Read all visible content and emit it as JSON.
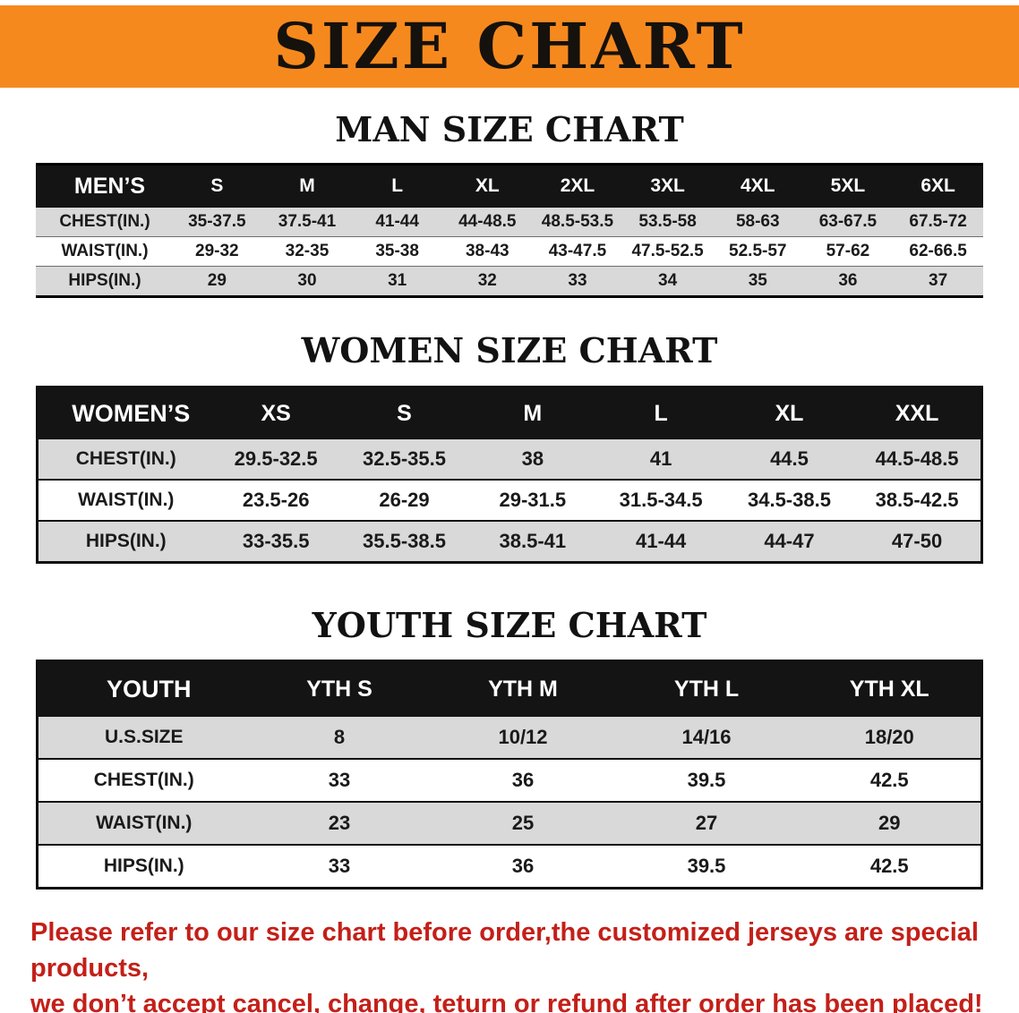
{
  "banner": {
    "title": "SIZE CHART",
    "bg_color": "#f6891e",
    "title_color": "#15110d"
  },
  "colors": {
    "table_header_bg": "#141414",
    "row_stripe": "#d9d9d9",
    "disclaimer_red": "#c32019"
  },
  "sections": [
    {
      "heading": "MAN SIZE CHART",
      "table": {
        "header": [
          "MEN’S",
          "S",
          "M",
          "L",
          "XL",
          "2XL",
          "3XL",
          "4XL",
          "5XL",
          "6XL"
        ],
        "rows": [
          [
            "CHEST(IN.)",
            "35-37.5",
            "37.5-41",
            "41-44",
            "44-48.5",
            "48.5-53.5",
            "53.5-58",
            "58-63",
            "63-67.5",
            "67.5-72"
          ],
          [
            "WAIST(IN.)",
            "29-32",
            "32-35",
            "35-38",
            "38-43",
            "43-47.5",
            "47.5-52.5",
            "52.5-57",
            "57-62",
            "62-66.5"
          ],
          [
            "HIPS(IN.)",
            "29",
            "30",
            "31",
            "32",
            "33",
            "34",
            "35",
            "36",
            "37"
          ]
        ]
      }
    },
    {
      "heading": "WOMEN SIZE CHART",
      "table": {
        "header": [
          "WOMEN’S",
          "XS",
          "S",
          "M",
          "L",
          "XL",
          "XXL"
        ],
        "rows": [
          [
            "CHEST(IN.)",
            "29.5-32.5",
            "32.5-35.5",
            "38",
            "41",
            "44.5",
            "44.5-48.5"
          ],
          [
            "WAIST(IN.)",
            "23.5-26",
            "26-29",
            "29-31.5",
            "31.5-34.5",
            "34.5-38.5",
            "38.5-42.5"
          ],
          [
            "HIPS(IN.)",
            "33-35.5",
            "35.5-38.5",
            "38.5-41",
            "41-44",
            "44-47",
            "47-50"
          ]
        ]
      }
    },
    {
      "heading": "YOUTH SIZE CHART",
      "table": {
        "header": [
          "YOUTH",
          "YTH S",
          "YTH M",
          "YTH L",
          "YTH XL"
        ],
        "rows": [
          [
            "U.S.SIZE",
            "8",
            "10/12",
            "14/16",
            "18/20"
          ],
          [
            "CHEST(IN.)",
            "33",
            "36",
            "39.5",
            "42.5"
          ],
          [
            "WAIST(IN.)",
            "23",
            "25",
            "27",
            "29"
          ],
          [
            "HIPS(IN.)",
            "33",
            "36",
            "39.5",
            "42.5"
          ]
        ]
      }
    }
  ],
  "disclaimer": {
    "line1": "Please refer to our size chart before order,the customized jerseys are special products,",
    "line2": "we don’t accept cancel, change, teturn or refund after order has been placed!"
  }
}
